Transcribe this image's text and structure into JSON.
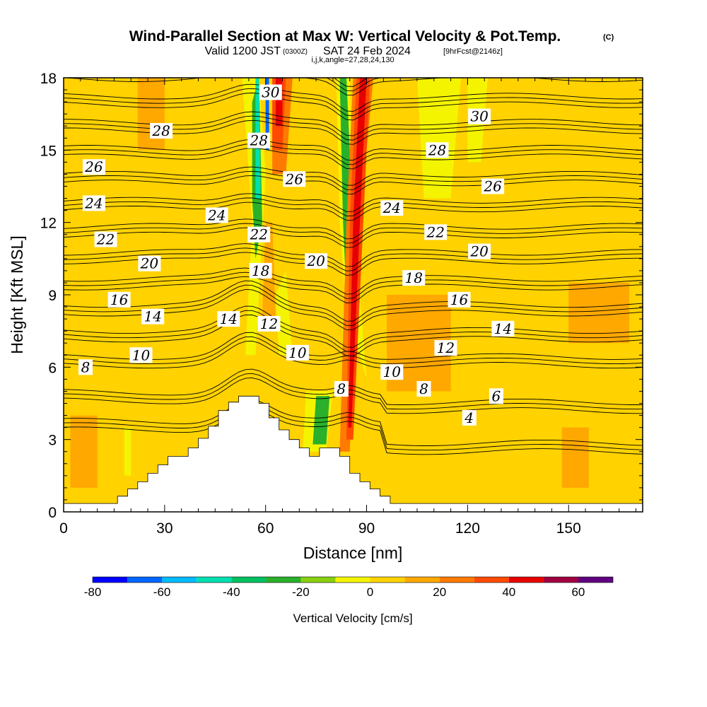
{
  "header": {
    "title": "Wind-Parallel Section at Max W: Vertical Velocity & Pot.Temp.",
    "copyright": "(C)",
    "valid_main": "Valid 1200 JST",
    "valid_utc": "(0300Z)",
    "valid_date": "SAT 24 Feb 2024",
    "forecast": "[9hrFcst@2146z]",
    "indices": "i,j,k,angle=27,28,24,130"
  },
  "chart_data": {
    "type": "heatmap",
    "title": "Wind-Parallel Section at Max W: Vertical Velocity & Pot.Temp.",
    "xlabel": "Distance [nm]",
    "ylabel": "Height [Kft MSL]",
    "xlim": [
      0,
      172
    ],
    "ylim": [
      0,
      18
    ],
    "x_ticks": [
      0,
      30,
      60,
      90,
      120,
      150
    ],
    "y_ticks": [
      0,
      3,
      6,
      9,
      12,
      15,
      18
    ],
    "colorbar": {
      "label": "Vertical Velocity [cm/s]",
      "tick_values": [
        -80,
        -60,
        -40,
        -20,
        0,
        20,
        40,
        60
      ],
      "bounds": [
        -80,
        -70,
        -60,
        -50,
        -40,
        -30,
        -20,
        -10,
        0,
        10,
        20,
        30,
        40,
        50,
        60,
        70
      ],
      "colors": [
        "#0000ff",
        "#0066ff",
        "#00bbff",
        "#00e0b0",
        "#00c060",
        "#2ab02a",
        "#88d010",
        "#f4f400",
        "#ffd200",
        "#ffa800",
        "#ff7a00",
        "#ff4a00",
        "#e80000",
        "#a00040",
        "#600080"
      ]
    },
    "terrain": [
      [
        0,
        0.35
      ],
      [
        16,
        0.35
      ],
      [
        16,
        0.65
      ],
      [
        19,
        0.65
      ],
      [
        19,
        0.95
      ],
      [
        22,
        0.95
      ],
      [
        22,
        1.25
      ],
      [
        25,
        1.25
      ],
      [
        25,
        1.6
      ],
      [
        28,
        1.6
      ],
      [
        28,
        1.95
      ],
      [
        31,
        1.95
      ],
      [
        31,
        2.3
      ],
      [
        37,
        2.3
      ],
      [
        37,
        2.65
      ],
      [
        40,
        2.65
      ],
      [
        40,
        3.05
      ],
      [
        43,
        3.05
      ],
      [
        43,
        3.55
      ],
      [
        46,
        3.55
      ],
      [
        46,
        4.2
      ],
      [
        49,
        4.2
      ],
      [
        49,
        4.55
      ],
      [
        52,
        4.55
      ],
      [
        52,
        4.8
      ],
      [
        58,
        4.8
      ],
      [
        58,
        4.5
      ],
      [
        61,
        4.5
      ],
      [
        61,
        3.9
      ],
      [
        64,
        3.9
      ],
      [
        64,
        3.4
      ],
      [
        67,
        3.4
      ],
      [
        67,
        3.0
      ],
      [
        70,
        3.0
      ],
      [
        70,
        2.65
      ],
      [
        73,
        2.65
      ],
      [
        73,
        2.3
      ],
      [
        76,
        2.3
      ],
      [
        76,
        2.65
      ],
      [
        82,
        2.65
      ],
      [
        82,
        2.3
      ],
      [
        85,
        2.3
      ],
      [
        85,
        1.6
      ],
      [
        88,
        1.6
      ],
      [
        88,
        1.25
      ],
      [
        91,
        1.25
      ],
      [
        91,
        0.95
      ],
      [
        94,
        0.95
      ],
      [
        94,
        0.65
      ],
      [
        97,
        0.65
      ],
      [
        97,
        0.35
      ],
      [
        172,
        0.35
      ]
    ],
    "velocity_regions": [
      {
        "w": 5,
        "points": [
          [
            0,
            0.35
          ],
          [
            172,
            0.35
          ],
          [
            172,
            18
          ],
          [
            0,
            18
          ]
        ]
      },
      {
        "w": 0,
        "points": [
          [
            24,
            1
          ],
          [
            36,
            1
          ],
          [
            34,
            18
          ],
          [
            30,
            18
          ],
          [
            26,
            12
          ],
          [
            24,
            4
          ]
        ]
      },
      {
        "w": 0,
        "points": [
          [
            96,
            1
          ],
          [
            172,
            1
          ],
          [
            172,
            3.5
          ],
          [
            96,
            3.8
          ]
        ]
      },
      {
        "w": 0,
        "points": [
          [
            115,
            13
          ],
          [
            120,
            18
          ],
          [
            128,
            18
          ],
          [
            126,
            12
          ]
        ]
      },
      {
        "w": 0,
        "points": [
          [
            128,
            9
          ],
          [
            140,
            9
          ],
          [
            138,
            7
          ],
          [
            128,
            7
          ]
        ]
      },
      {
        "w": 10,
        "points": [
          [
            2,
            1
          ],
          [
            10,
            1
          ],
          [
            10,
            4
          ],
          [
            2,
            4
          ]
        ]
      },
      {
        "w": 10,
        "points": [
          [
            22,
            15
          ],
          [
            30,
            15
          ],
          [
            30,
            18
          ],
          [
            22,
            18
          ]
        ]
      },
      {
        "w": 10,
        "points": [
          [
            148,
            1
          ],
          [
            156,
            1
          ],
          [
            156,
            3.5
          ],
          [
            148,
            3.5
          ]
        ]
      },
      {
        "w": 10,
        "points": [
          [
            150,
            7
          ],
          [
            168,
            7
          ],
          [
            168,
            9.5
          ],
          [
            150,
            9.5
          ]
        ]
      },
      {
        "w": 10,
        "points": [
          [
            96,
            5
          ],
          [
            115,
            5
          ],
          [
            115,
            9
          ],
          [
            96,
            9
          ]
        ]
      },
      {
        "w": -10,
        "points": [
          [
            107,
            13
          ],
          [
            115,
            13
          ],
          [
            118,
            18
          ],
          [
            105,
            18
          ]
        ]
      },
      {
        "w": -10,
        "points": [
          [
            120,
            14.5
          ],
          [
            124,
            14.5
          ],
          [
            126,
            18
          ],
          [
            120,
            18
          ]
        ]
      },
      {
        "w": -10,
        "points": [
          [
            18,
            1.5
          ],
          [
            20,
            1.5
          ],
          [
            20,
            3.5
          ],
          [
            18,
            3.5
          ]
        ]
      },
      {
        "w": -10,
        "points": [
          [
            54,
            6.5
          ],
          [
            57,
            6.5
          ],
          [
            60,
            14
          ],
          [
            58,
            18
          ],
          [
            53,
            18
          ],
          [
            56,
            12
          ]
        ]
      },
      {
        "w": -10,
        "points": [
          [
            64,
            6.5
          ],
          [
            68,
            6.5
          ],
          [
            66,
            10
          ],
          [
            63,
            9
          ]
        ]
      },
      {
        "w": -10,
        "points": [
          [
            84,
            8
          ],
          [
            88,
            6.5
          ],
          [
            90,
            5.5
          ],
          [
            88,
            9
          ],
          [
            86,
            12
          ],
          [
            85,
            18
          ],
          [
            81,
            18
          ],
          [
            82,
            12
          ]
        ]
      },
      {
        "w": -10,
        "points": [
          [
            71,
            2.5
          ],
          [
            78,
            2.5
          ],
          [
            80,
            5
          ],
          [
            72,
            5
          ]
        ]
      },
      {
        "w": -30,
        "points": [
          [
            74,
            2.8
          ],
          [
            78,
            2.8
          ],
          [
            79,
            4.8
          ],
          [
            75,
            4.8
          ]
        ]
      },
      {
        "w": -30,
        "points": [
          [
            57,
            10.5
          ],
          [
            59,
            12
          ],
          [
            58,
            18
          ],
          [
            56,
            17
          ],
          [
            56,
            13
          ]
        ]
      },
      {
        "w": -30,
        "points": [
          [
            84,
            9
          ],
          [
            87,
            7
          ],
          [
            86,
            12
          ],
          [
            84,
            18
          ],
          [
            82,
            18
          ],
          [
            83,
            12
          ]
        ]
      },
      {
        "w": -45,
        "points": [
          [
            57,
            13
          ],
          [
            58.5,
            13
          ],
          [
            58,
            18
          ],
          [
            57,
            18
          ]
        ]
      },
      {
        "w": -70,
        "points": [
          [
            60,
            15
          ],
          [
            61,
            15
          ],
          [
            61,
            18
          ],
          [
            60,
            18
          ]
        ]
      },
      {
        "w": 10,
        "points": [
          [
            59,
            8
          ],
          [
            63,
            8
          ],
          [
            62,
            12
          ],
          [
            60,
            12
          ]
        ]
      },
      {
        "w": 20,
        "points": [
          [
            62,
            14
          ],
          [
            66,
            14
          ],
          [
            68,
            18
          ],
          [
            62,
            18
          ]
        ]
      },
      {
        "w": 30,
        "points": [
          [
            62,
            15
          ],
          [
            65,
            15
          ],
          [
            66,
            18
          ],
          [
            62,
            18
          ]
        ]
      },
      {
        "w": 40,
        "points": [
          [
            63,
            16
          ],
          [
            65,
            16
          ],
          [
            65,
            18
          ],
          [
            63,
            18
          ]
        ]
      },
      {
        "w": 20,
        "points": [
          [
            82,
            2.5
          ],
          [
            85,
            2.5
          ],
          [
            88,
            12
          ],
          [
            92,
            18
          ],
          [
            86,
            18
          ],
          [
            84,
            12
          ]
        ]
      },
      {
        "w": 30,
        "points": [
          [
            84,
            3
          ],
          [
            86,
            3
          ],
          [
            89,
            12
          ],
          [
            91,
            18
          ],
          [
            87,
            18
          ],
          [
            85,
            12
          ]
        ]
      },
      {
        "w": 40,
        "points": [
          [
            84.5,
            3.5
          ],
          [
            85.5,
            3.5
          ],
          [
            88,
            12
          ],
          [
            90,
            18
          ],
          [
            88,
            18
          ],
          [
            86,
            12
          ]
        ]
      }
    ],
    "theta_levels": [
      4,
      6,
      8,
      10,
      12,
      14,
      16,
      18,
      20,
      22,
      24,
      26,
      28,
      30
    ],
    "contour_labels": [
      {
        "text": "28",
        "x": 29,
        "y": 15.8
      },
      {
        "text": "26",
        "x": 9,
        "y": 14.3
      },
      {
        "text": "24",
        "x": 9,
        "y": 12.8
      },
      {
        "text": "22",
        "x": 12.5,
        "y": 11.3
      },
      {
        "text": "20",
        "x": 25.5,
        "y": 10.3
      },
      {
        "text": "16",
        "x": 16.5,
        "y": 8.8
      },
      {
        "text": "14",
        "x": 26.5,
        "y": 8.1
      },
      {
        "text": "10",
        "x": 23,
        "y": 6.5
      },
      {
        "text": "8",
        "x": 6.5,
        "y": 6.0
      },
      {
        "text": "24",
        "x": 45.5,
        "y": 12.3
      },
      {
        "text": "14",
        "x": 49,
        "y": 8.0
      },
      {
        "text": "30",
        "x": 61.5,
        "y": 17.4
      },
      {
        "text": "28",
        "x": 58,
        "y": 15.4
      },
      {
        "text": "26",
        "x": 68.5,
        "y": 13.8
      },
      {
        "text": "22",
        "x": 58,
        "y": 11.5
      },
      {
        "text": "18",
        "x": 58.5,
        "y": 10.0
      },
      {
        "text": "12",
        "x": 61,
        "y": 7.8
      },
      {
        "text": "10",
        "x": 69.5,
        "y": 6.6
      },
      {
        "text": "20",
        "x": 75,
        "y": 10.4
      },
      {
        "text": "8",
        "x": 82.5,
        "y": 5.1
      },
      {
        "text": "24",
        "x": 97.5,
        "y": 12.6
      },
      {
        "text": "10",
        "x": 97.5,
        "y": 5.8
      },
      {
        "text": "8",
        "x": 107,
        "y": 5.1
      },
      {
        "text": "18",
        "x": 104,
        "y": 9.7
      },
      {
        "text": "22",
        "x": 110.5,
        "y": 11.6
      },
      {
        "text": "28",
        "x": 111,
        "y": 15.0
      },
      {
        "text": "12",
        "x": 113.5,
        "y": 6.8
      },
      {
        "text": "16",
        "x": 117.5,
        "y": 8.8
      },
      {
        "text": "4",
        "x": 120.5,
        "y": 3.9
      },
      {
        "text": "20",
        "x": 123.5,
        "y": 10.8
      },
      {
        "text": "30",
        "x": 123.5,
        "y": 16.4
      },
      {
        "text": "6",
        "x": 128.5,
        "y": 4.8
      },
      {
        "text": "26",
        "x": 127.5,
        "y": 13.5
      },
      {
        "text": "14",
        "x": 130.5,
        "y": 7.6
      }
    ]
  }
}
